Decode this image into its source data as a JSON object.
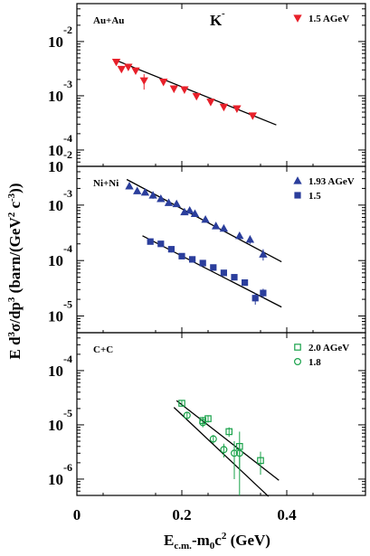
{
  "chart_data": [
    {
      "type": "scatter",
      "panel": "top",
      "system_label": "Au+Au",
      "particle_label": "K",
      "particle_charge": "-",
      "log_y": true,
      "ylim": [
        5e-05,
        0.05
      ],
      "xlim": [
        0.0,
        0.55
      ],
      "y_tick_labels": [
        {
          "base": "10",
          "exp": "-2",
          "value": 0.01
        },
        {
          "base": "10",
          "exp": "-3",
          "value": 0.001
        },
        {
          "base": "10",
          "exp": "-4",
          "value": 0.0001
        }
      ],
      "series": [
        {
          "name": "1.5 AGeV",
          "marker": "triangle-down",
          "color": "#e8202a",
          "filled": true,
          "points": [
            {
              "x": 0.075,
              "y": 0.0042,
              "err": 0.0003
            },
            {
              "x": 0.085,
              "y": 0.0031,
              "err": 0.0003
            },
            {
              "x": 0.098,
              "y": 0.0034,
              "err": 0.0003
            },
            {
              "x": 0.112,
              "y": 0.0029,
              "err": 0.0003
            },
            {
              "x": 0.128,
              "y": 0.0019,
              "err": 0.0006
            },
            {
              "x": 0.165,
              "y": 0.0018,
              "err": 0.0002
            },
            {
              "x": 0.185,
              "y": 0.00135,
              "err": 0.0002
            },
            {
              "x": 0.205,
              "y": 0.0013,
              "err": 0.0002
            },
            {
              "x": 0.228,
              "y": 0.00098,
              "err": 0.00012
            },
            {
              "x": 0.255,
              "y": 0.00077,
              "err": 0.0001
            },
            {
              "x": 0.28,
              "y": 0.00062,
              "err": 8e-05
            },
            {
              "x": 0.305,
              "y": 0.00058,
              "err": 8e-05
            },
            {
              "x": 0.335,
              "y": 0.00043,
              "err": 6e-05
            }
          ]
        }
      ],
      "fits": [
        {
          "x": [
            0.07,
            0.38
          ],
          "y": [
            0.0047,
            0.00029
          ]
        }
      ]
    },
    {
      "type": "scatter",
      "panel": "middle",
      "system_label": "Ni+Ni",
      "log_y": true,
      "ylim": [
        5e-06,
        0.005
      ],
      "xlim": [
        0.0,
        0.55
      ],
      "y_tick_labels": [
        {
          "base": "10",
          "exp": "-2",
          "value": 0.01
        },
        {
          "base": "10",
          "exp": "-3",
          "value": 0.001
        },
        {
          "base": "10",
          "exp": "-4",
          "value": 0.0001
        },
        {
          "base": "10",
          "exp": "-5",
          "value": 1e-05
        }
      ],
      "series": [
        {
          "name": "1.93 AGeV",
          "marker": "triangle-up",
          "color": "#2b3e9c",
          "filled": true,
          "points": [
            {
              "x": 0.1,
              "y": 0.0022,
              "err": 0.0002
            },
            {
              "x": 0.115,
              "y": 0.0018,
              "err": 0.0002
            },
            {
              "x": 0.13,
              "y": 0.0017,
              "err": 0.0002
            },
            {
              "x": 0.145,
              "y": 0.0015,
              "err": 0.0002
            },
            {
              "x": 0.16,
              "y": 0.0013,
              "err": 0.0001
            },
            {
              "x": 0.175,
              "y": 0.0011,
              "err": 0.0001
            },
            {
              "x": 0.19,
              "y": 0.00105,
              "err": 0.0001
            },
            {
              "x": 0.205,
              "y": 0.00075,
              "err": 8e-05
            },
            {
              "x": 0.215,
              "y": 0.0008,
              "err": 8e-05
            },
            {
              "x": 0.225,
              "y": 0.0007,
              "err": 8e-05
            },
            {
              "x": 0.245,
              "y": 0.00055,
              "err": 6e-05
            },
            {
              "x": 0.265,
              "y": 0.00042,
              "err": 5e-05
            },
            {
              "x": 0.28,
              "y": 0.00038,
              "err": 5e-05
            },
            {
              "x": 0.31,
              "y": 0.00028,
              "err": 4e-05
            },
            {
              "x": 0.33,
              "y": 0.00024,
              "err": 4e-05
            },
            {
              "x": 0.355,
              "y": 0.00013,
              "err": 3e-05
            }
          ]
        },
        {
          "name": "1.5",
          "marker": "square",
          "color": "#2b3e9c",
          "filled": true,
          "points": [
            {
              "x": 0.14,
              "y": 0.00022,
              "err": 2e-05
            },
            {
              "x": 0.16,
              "y": 0.0002,
              "err": 2e-05
            },
            {
              "x": 0.18,
              "y": 0.00016,
              "err": 2e-05
            },
            {
              "x": 0.2,
              "y": 0.00012,
              "err": 1e-05
            },
            {
              "x": 0.22,
              "y": 0.000105,
              "err": 1e-05
            },
            {
              "x": 0.24,
              "y": 9e-05,
              "err": 1e-05
            },
            {
              "x": 0.26,
              "y": 7.5e-05,
              "err": 8e-06
            },
            {
              "x": 0.28,
              "y": 6e-05,
              "err": 6e-06
            },
            {
              "x": 0.3,
              "y": 5e-05,
              "err": 5e-06
            },
            {
              "x": 0.32,
              "y": 4e-05,
              "err": 4e-06
            },
            {
              "x": 0.34,
              "y": 2.1e-05,
              "err": 5e-06
            },
            {
              "x": 0.355,
              "y": 2.6e-05,
              "err": 5e-06
            }
          ]
        }
      ],
      "fits": [
        {
          "x": [
            0.095,
            0.39
          ],
          "y": [
            0.0029,
            9.5e-05
          ]
        },
        {
          "x": [
            0.125,
            0.39
          ],
          "y": [
            0.00028,
            1.45e-05
          ]
        }
      ]
    },
    {
      "type": "scatter",
      "panel": "bottom",
      "system_label": "C+C",
      "log_y": true,
      "ylim": [
        5e-07,
        0.0005
      ],
      "xlim": [
        0.0,
        0.55
      ],
      "y_tick_labels": [
        {
          "base": "10",
          "exp": "-4",
          "value": 0.0001
        },
        {
          "base": "10",
          "exp": "-5",
          "value": 1e-05
        },
        {
          "base": "10",
          "exp": "-6",
          "value": 1e-06
        }
      ],
      "series": [
        {
          "name": "2.0 AGeV",
          "marker": "square-open",
          "color": "#19a24a",
          "filled": false,
          "points": [
            {
              "x": 0.2,
              "y": 2.5e-05,
              "err": 3e-06
            },
            {
              "x": 0.24,
              "y": 1.2e-05,
              "err": 2e-06
            },
            {
              "x": 0.25,
              "y": 1.3e-05,
              "err": 2e-06
            },
            {
              "x": 0.29,
              "y": 7.5e-06,
              "err": 1.5e-06
            },
            {
              "x": 0.31,
              "y": 4e-06,
              "err": 3.5e-06
            },
            {
              "x": 0.35,
              "y": 2.2e-06,
              "err": 1e-06
            }
          ]
        },
        {
          "name": "1.8",
          "marker": "circle-open",
          "color": "#19a24a",
          "filled": false,
          "points": [
            {
              "x": 0.21,
              "y": 1.5e-05,
              "err": 2e-06
            },
            {
              "x": 0.24,
              "y": 1.1e-05,
              "err": 2e-06
            },
            {
              "x": 0.26,
              "y": 5.5e-06,
              "err": 1e-06
            },
            {
              "x": 0.28,
              "y": 3.5e-06,
              "err": 1e-06
            },
            {
              "x": 0.3,
              "y": 3e-06,
              "err": 2e-06
            },
            {
              "x": 0.31,
              "y": 3e-06,
              "err": 1.5e-06
            }
          ]
        }
      ],
      "fits": [
        {
          "x": [
            0.19,
            0.385
          ],
          "y": [
            2.8e-05,
            9.5e-07
          ]
        },
        {
          "x": [
            0.185,
            0.365
          ],
          "y": [
            2.1e-05,
            4.8e-07
          ]
        }
      ]
    }
  ],
  "axes": {
    "ylabel_main": "E d",
    "ylabel_pow1": "3",
    "ylabel_mid": "σ/dp",
    "ylabel_pow2": "3",
    "ylabel_unit": " (barn/(GeV",
    "ylabel_pow3": "2",
    "ylabel_unit2": " c",
    "ylabel_pow4": "-3",
    "ylabel_end": "))",
    "xlabel_main": "E",
    "xlabel_sub": "c.m.",
    "xlabel_mid": "-m",
    "xlabel_sub2": "0",
    "xlabel_c": "c",
    "xlabel_pow": "2",
    "xlabel_unit": " (GeV)",
    "x_ticks": [
      {
        "value": 0,
        "label": "0"
      },
      {
        "value": 0.2,
        "label": "0.2"
      },
      {
        "value": 0.4,
        "label": "0.4"
      }
    ]
  }
}
